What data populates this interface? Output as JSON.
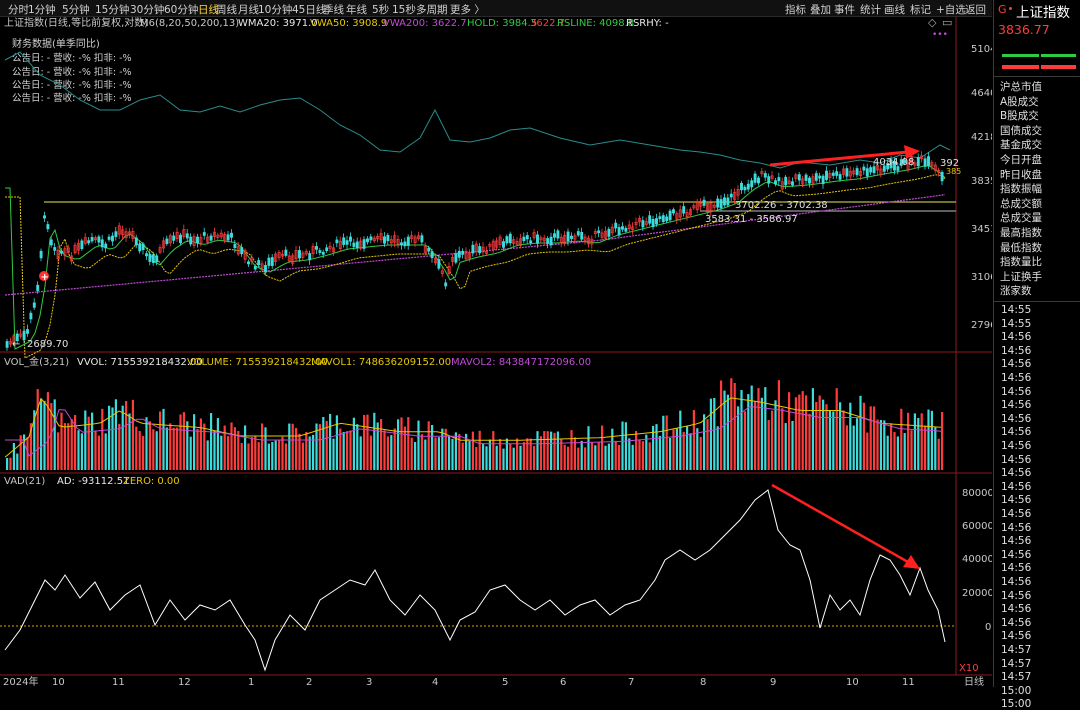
{
  "toolbar": {
    "periods": [
      "分时",
      "1分钟",
      "5分钟",
      "15分钟",
      "30分钟",
      "60分钟",
      "日线",
      "周线",
      "月线",
      "10分钟",
      "45日线",
      "季线",
      "年线",
      "5秒",
      "15秒",
      "多周期",
      "更多 〉"
    ],
    "active_period": "日线",
    "right_menu": [
      "指标",
      "叠加",
      "事件",
      "统计",
      "画线",
      "标记",
      "+自选",
      "返回"
    ]
  },
  "main_header": {
    "title": "上证指数(日线,等比前复权,对数)",
    "ma": "M6(8,20,50,200,13)",
    "wma20": "WMA20: 3971.0",
    "vwa50": "VWA50: 3908.9",
    "vwa200": "VWA200: 3622.7",
    "hold": "HOLD: 3984.5",
    "hold2": "3622.7",
    "rsline": "RSLINE: 4098.8",
    "rsrhy": "RSRHY: -"
  },
  "finance": {
    "title": "财务数据(单季同比)",
    "rows": [
      "公告日: -    营收: -%    扣非: -%",
      "公告日: -    营收: -%    扣非: -%",
      "公告日: -    营收: -%    扣非: -%",
      "公告日: -    营收: -%    扣非: -%"
    ]
  },
  "price_axis": [
    "5104",
    "4640",
    "4218",
    "3835",
    "3451",
    "3106",
    "2796"
  ],
  "annotations": {
    "low": "2689.70",
    "high": "4034.08",
    "high_suffix": "392",
    "ref_a": "3702.26 - 3702.38",
    "ref_b": "3583.31 - 3586.97",
    "small_val": "385"
  },
  "vol_header": {
    "title": "VOL_金(3,21)",
    "vvol": "VVOL: 715539218432.00",
    "volume": "VOLUME: 715539218432.00",
    "mavol1": "MAVOL1: 748636209152.00",
    "mavol2": "MAVOL2: 843847172096.00"
  },
  "vad_header": {
    "title": "VAD(21)",
    "ad": "AD: -93112.51",
    "zero": "ZERO: 0.00"
  },
  "vad_axis": [
    "80000",
    "60000",
    "40000",
    "20000",
    "0"
  ],
  "vad_scale": "X10",
  "x_axis": {
    "year": "2024年",
    "months": [
      "10",
      "11",
      "12",
      "1",
      "2",
      "3",
      "4",
      "5",
      "6",
      "7",
      "8",
      "9",
      "10",
      "11"
    ],
    "period_label": "日线"
  },
  "right_panel": {
    "badge": "G",
    "index_name": "上证指数",
    "price": "3836.77",
    "items": [
      "沪总市值",
      "A股成交",
      "B股成交",
      "国债成交",
      "基金成交",
      "今日开盘",
      "昨日收盘",
      "指数振幅",
      "总成交额",
      "总成交量",
      "最高指数",
      "最低指数",
      "指数量比",
      "上证换手",
      "涨家数"
    ],
    "times": [
      "14:55",
      "14:55",
      "14:56",
      "14:56",
      "14:56",
      "14:56",
      "14:56",
      "14:56",
      "14:56",
      "14:56",
      "14:56",
      "14:56",
      "14:56",
      "14:56",
      "14:56",
      "14:56",
      "14:56",
      "14:56",
      "14:56",
      "14:56",
      "14:56",
      "14:56",
      "14:56",
      "14:56",
      "14:56",
      "14:57",
      "14:57",
      "14:57",
      "15:00",
      "15:00"
    ]
  },
  "colors": {
    "up": "#ff3c3c",
    "down": "#3cdcdc",
    "ma_yellow": "#e6c800",
    "ma_green": "#2ecc40",
    "ma_purple": "#c24ad8",
    "ma_cyan": "#2a8c8c",
    "vad_line": "#ffffff",
    "arrow": "#ff2020"
  }
}
